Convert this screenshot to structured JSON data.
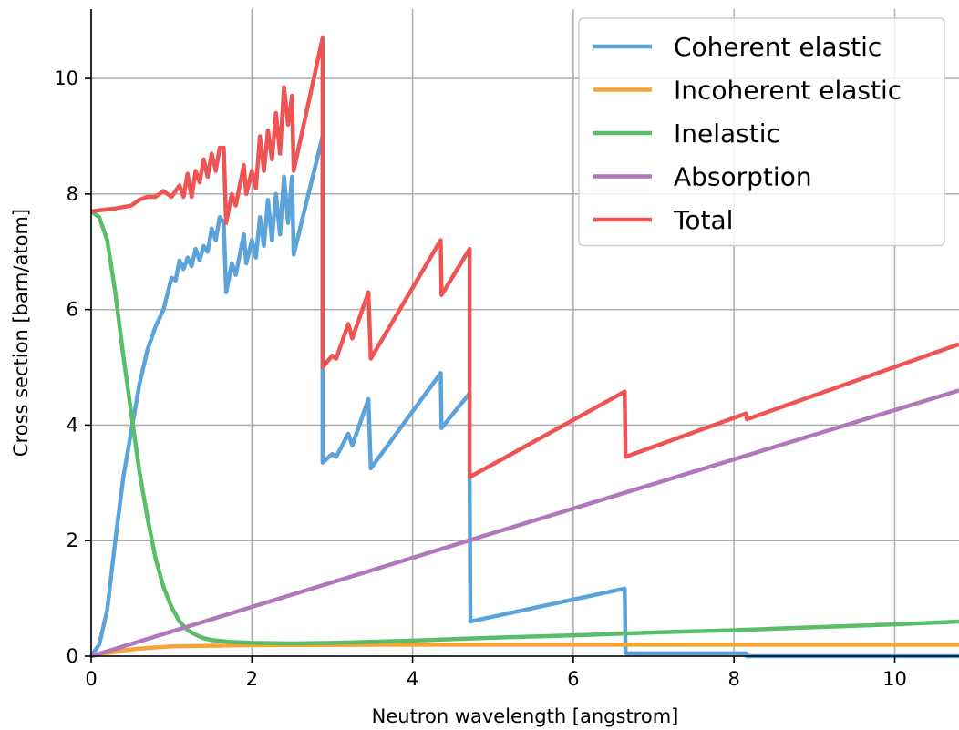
{
  "chart_data": {
    "type": "line",
    "title": "",
    "xlabel": "Neutron wavelength [angstrom]",
    "ylabel": "Cross section [barn/atom]",
    "xlim": [
      0,
      10.8
    ],
    "ylim": [
      0,
      11.2
    ],
    "xticks": [
      0,
      2,
      4,
      6,
      8,
      10
    ],
    "xtick_labels": [
      "0",
      "2",
      "4",
      "6",
      "8",
      "10"
    ],
    "yticks": [
      0,
      2,
      4,
      6,
      8,
      10
    ],
    "ytick_labels": [
      "0",
      "2",
      "4",
      "6",
      "8",
      "10"
    ],
    "grid": true,
    "legend_position": "top-right",
    "series": [
      {
        "name": "Coherent elastic",
        "color": "#5ba3db",
        "points": [
          [
            0,
            0
          ],
          [
            0.1,
            0.2
          ],
          [
            0.2,
            0.8
          ],
          [
            0.3,
            2.0
          ],
          [
            0.4,
            3.1
          ],
          [
            0.5,
            3.9
          ],
          [
            0.6,
            4.7
          ],
          [
            0.7,
            5.3
          ],
          [
            0.8,
            5.7
          ],
          [
            0.9,
            6.0
          ],
          [
            1.0,
            6.55
          ],
          [
            1.05,
            6.5
          ],
          [
            1.1,
            6.85
          ],
          [
            1.15,
            6.7
          ],
          [
            1.2,
            6.9
          ],
          [
            1.25,
            6.75
          ],
          [
            1.3,
            7.05
          ],
          [
            1.35,
            6.85
          ],
          [
            1.4,
            7.1
          ],
          [
            1.45,
            7.0
          ],
          [
            1.5,
            7.4
          ],
          [
            1.55,
            7.2
          ],
          [
            1.6,
            7.6
          ],
          [
            1.65,
            7.5
          ],
          [
            1.68,
            6.3
          ],
          [
            1.75,
            6.8
          ],
          [
            1.8,
            6.6
          ],
          [
            1.9,
            7.3
          ],
          [
            1.93,
            6.8
          ],
          [
            2.0,
            7.2
          ],
          [
            2.05,
            6.9
          ],
          [
            2.1,
            7.6
          ],
          [
            2.15,
            7.1
          ],
          [
            2.2,
            7.9
          ],
          [
            2.25,
            7.2
          ],
          [
            2.3,
            8.0
          ],
          [
            2.35,
            7.3
          ],
          [
            2.4,
            8.3
          ],
          [
            2.45,
            7.5
          ],
          [
            2.5,
            8.3
          ],
          [
            2.52,
            6.95
          ],
          [
            2.88,
            9.0
          ],
          [
            2.88,
            3.35
          ],
          [
            3.0,
            3.5
          ],
          [
            3.05,
            3.45
          ],
          [
            3.2,
            3.85
          ],
          [
            3.25,
            3.65
          ],
          [
            3.45,
            4.45
          ],
          [
            3.48,
            3.25
          ],
          [
            4.35,
            4.9
          ],
          [
            4.36,
            3.95
          ],
          [
            4.71,
            4.55
          ],
          [
            4.71,
            3.25
          ],
          [
            4.71,
            3.0
          ],
          [
            4.72,
            0.6
          ],
          [
            6.64,
            1.17
          ],
          [
            6.65,
            0.05
          ],
          [
            8.15,
            0.05
          ],
          [
            8.16,
            0.0
          ],
          [
            10.8,
            0.0
          ]
        ]
      },
      {
        "name": "Incoherent elastic",
        "color": "#f5a536",
        "points": [
          [
            0,
            0
          ],
          [
            0.2,
            0.05
          ],
          [
            0.4,
            0.1
          ],
          [
            0.6,
            0.13
          ],
          [
            0.8,
            0.15
          ],
          [
            1.0,
            0.17
          ],
          [
            1.5,
            0.18
          ],
          [
            2.0,
            0.19
          ],
          [
            4.0,
            0.2
          ],
          [
            6.0,
            0.2
          ],
          [
            8.0,
            0.2
          ],
          [
            10.8,
            0.2
          ]
        ]
      },
      {
        "name": "Inelastic",
        "color": "#5bbd67",
        "points": [
          [
            0,
            7.7
          ],
          [
            0.1,
            7.6
          ],
          [
            0.2,
            7.2
          ],
          [
            0.3,
            6.3
          ],
          [
            0.4,
            5.2
          ],
          [
            0.5,
            4.2
          ],
          [
            0.6,
            3.2
          ],
          [
            0.7,
            2.4
          ],
          [
            0.8,
            1.7
          ],
          [
            0.9,
            1.2
          ],
          [
            1.0,
            0.85
          ],
          [
            1.1,
            0.6
          ],
          [
            1.2,
            0.45
          ],
          [
            1.3,
            0.37
          ],
          [
            1.4,
            0.31
          ],
          [
            1.5,
            0.28
          ],
          [
            1.7,
            0.25
          ],
          [
            2.0,
            0.23
          ],
          [
            2.5,
            0.22
          ],
          [
            3.0,
            0.23
          ],
          [
            4.0,
            0.27
          ],
          [
            5.0,
            0.32
          ],
          [
            6.0,
            0.36
          ],
          [
            7.0,
            0.41
          ],
          [
            8.0,
            0.45
          ],
          [
            9.0,
            0.5
          ],
          [
            10.0,
            0.55
          ],
          [
            10.8,
            0.6
          ]
        ]
      },
      {
        "name": "Absorption",
        "color": "#b077bd",
        "points": [
          [
            0,
            0
          ],
          [
            10.8,
            4.6
          ]
        ]
      },
      {
        "name": "Total",
        "color": "#ef5454",
        "points": [
          [
            0,
            7.7
          ],
          [
            0.3,
            7.75
          ],
          [
            0.5,
            7.8
          ],
          [
            0.6,
            7.9
          ],
          [
            0.7,
            7.95
          ],
          [
            0.8,
            7.95
          ],
          [
            0.9,
            8.05
          ],
          [
            1.0,
            7.95
          ],
          [
            1.1,
            8.15
          ],
          [
            1.15,
            7.95
          ],
          [
            1.2,
            8.35
          ],
          [
            1.25,
            7.95
          ],
          [
            1.3,
            8.4
          ],
          [
            1.35,
            8.2
          ],
          [
            1.4,
            8.6
          ],
          [
            1.45,
            8.3
          ],
          [
            1.5,
            8.7
          ],
          [
            1.55,
            8.4
          ],
          [
            1.6,
            8.8
          ],
          [
            1.65,
            8.8
          ],
          [
            1.68,
            7.5
          ],
          [
            1.75,
            8.0
          ],
          [
            1.8,
            7.8
          ],
          [
            1.9,
            8.5
          ],
          [
            1.93,
            8.0
          ],
          [
            2.0,
            8.4
          ],
          [
            2.05,
            8.1
          ],
          [
            2.1,
            9.0
          ],
          [
            2.15,
            8.4
          ],
          [
            2.2,
            9.1
          ],
          [
            2.25,
            8.6
          ],
          [
            2.3,
            9.4
          ],
          [
            2.35,
            8.7
          ],
          [
            2.4,
            9.85
          ],
          [
            2.45,
            9.2
          ],
          [
            2.5,
            9.7
          ],
          [
            2.52,
            8.4
          ],
          [
            2.88,
            10.7
          ],
          [
            2.88,
            5.0
          ],
          [
            3.0,
            5.2
          ],
          [
            3.05,
            5.15
          ],
          [
            3.2,
            5.75
          ],
          [
            3.25,
            5.5
          ],
          [
            3.45,
            6.3
          ],
          [
            3.48,
            5.15
          ],
          [
            4.35,
            7.2
          ],
          [
            4.36,
            6.25
          ],
          [
            4.71,
            7.05
          ],
          [
            4.71,
            3.1
          ],
          [
            6.64,
            4.58
          ],
          [
            6.65,
            3.45
          ],
          [
            8.15,
            4.2
          ],
          [
            8.16,
            4.1
          ],
          [
            10.8,
            5.4
          ]
        ]
      }
    ]
  }
}
